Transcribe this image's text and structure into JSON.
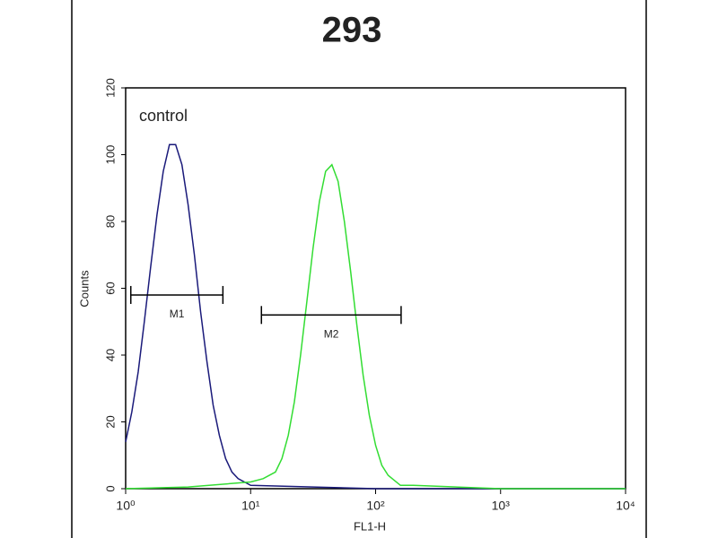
{
  "chart_data": {
    "type": "line",
    "title": "293",
    "xlabel": "FL1-H",
    "ylabel": "Counts",
    "xscale": "log",
    "xlim": [
      1,
      10000
    ],
    "xticks": [
      {
        "value": 1,
        "label": "10⁰"
      },
      {
        "value": 10,
        "label": "10¹"
      },
      {
        "value": 100,
        "label": "10²"
      },
      {
        "value": 1000,
        "label": "10³"
      },
      {
        "value": 10000,
        "label": "10⁴"
      }
    ],
    "ylim": [
      0,
      120
    ],
    "yticks": [
      0,
      20,
      40,
      60,
      80,
      100,
      120
    ],
    "series": [
      {
        "name": "control",
        "color": "#1a1a7a",
        "x": [
          1.0,
          1.12,
          1.26,
          1.41,
          1.58,
          1.78,
          2.0,
          2.24,
          2.51,
          2.82,
          3.16,
          3.55,
          3.98,
          4.47,
          5.01,
          5.62,
          6.31,
          7.08,
          7.94,
          8.91,
          10.0,
          31.6,
          100,
          1000,
          10000
        ],
        "values": [
          14,
          23,
          35,
          50,
          66,
          82,
          95,
          103,
          103,
          97,
          85,
          70,
          53,
          38,
          25,
          16,
          9,
          5,
          3,
          2,
          1,
          0.5,
          0,
          0,
          0
        ]
      },
      {
        "color": "#33dd33",
        "x": [
          1,
          3.16,
          10,
          12.6,
          15.8,
          17.8,
          20.0,
          22.4,
          25.1,
          28.2,
          31.6,
          35.5,
          39.8,
          44.7,
          50.1,
          56.2,
          63.1,
          70.8,
          79.4,
          89.1,
          100,
          112,
          126,
          158,
          200,
          1000,
          10000
        ],
        "values": [
          0,
          0.5,
          2,
          3,
          5,
          9,
          16,
          26,
          40,
          56,
          72,
          86,
          95,
          97,
          92,
          80,
          65,
          49,
          34,
          22,
          13,
          7,
          4,
          1,
          1,
          0,
          0
        ]
      }
    ],
    "markers": [
      {
        "label": "M1",
        "x": [
          1.1,
          6.0
        ],
        "y": 58
      },
      {
        "label": "M2",
        "x": [
          12.2,
          160
        ],
        "y": 52
      }
    ]
  }
}
